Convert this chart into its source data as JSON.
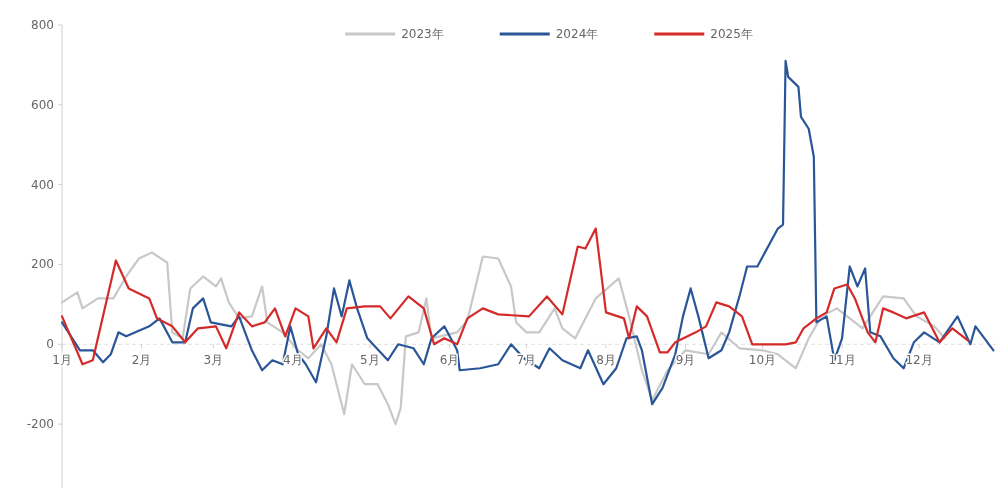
{
  "chart_data": {
    "type": "line",
    "xlim": [
      "--01-01",
      "--12-31"
    ],
    "ylim": [
      -360,
      800
    ],
    "yticks": [
      -200,
      0,
      200,
      400,
      600,
      800
    ],
    "xticks": [
      {
        "value": "--01-01",
        "label": "1月"
      },
      {
        "value": "--02-01",
        "label": "2月"
      },
      {
        "value": "--03-01",
        "label": "3月"
      },
      {
        "value": "--04-01",
        "label": "4月"
      },
      {
        "value": "--05-01",
        "label": "5月"
      },
      {
        "value": "--06-01",
        "label": "6月"
      },
      {
        "value": "--07-01",
        "label": "7月"
      },
      {
        "value": "--08-01",
        "label": "8月"
      },
      {
        "value": "--09-01",
        "label": "9月"
      },
      {
        "value": "--10-01",
        "label": "10月"
      },
      {
        "value": "--11-01",
        "label": "11月"
      },
      {
        "value": "--12-01",
        "label": "12月"
      }
    ],
    "legend": "top",
    "series": [
      {
        "name": "2023年",
        "color": "#c8c8c8",
        "x": [
          "--01-01",
          "--01-07",
          "--01-09",
          "--01-15",
          "--01-21",
          "--01-26",
          "--01-31",
          "--02-05",
          "--02-11",
          "--02-13",
          "--02-17",
          "--02-20",
          "--02-25",
          "--03-02",
          "--03-04",
          "--03-07",
          "--03-11",
          "--03-16",
          "--03-20",
          "--03-22",
          "--03-28",
          "--04-03",
          "--04-07",
          "--04-12",
          "--04-16",
          "--04-21",
          "--04-24",
          "--04-29",
          "--05-04",
          "--05-08",
          "--05-11",
          "--05-13",
          "--05-15",
          "--05-20",
          "--05-23",
          "--05-25",
          "--06-04",
          "--06-08",
          "--06-14",
          "--06-20",
          "--06-25",
          "--06-27",
          "--07-01",
          "--07-06",
          "--07-12",
          "--07-15",
          "--07-20",
          "--07-28",
          "--08-06",
          "--08-10",
          "--08-15",
          "--08-19",
          "--08-25",
          "--09-01",
          "--09-10",
          "--09-15",
          "--09-22",
          "--10-01",
          "--10-07",
          "--10-14",
          "--10-19",
          "--10-24",
          "--10-30",
          "--11-09",
          "--11-17",
          "--11-25",
          "--11-30",
          "--12-07",
          "--12-11"
        ],
        "values": [
          105,
          130,
          90,
          115,
          115,
          170,
          215,
          230,
          205,
          30,
          15,
          140,
          170,
          145,
          165,
          105,
          65,
          70,
          145,
          55,
          30,
          -15,
          -35,
          0,
          -50,
          -175,
          -50,
          -100,
          -100,
          -150,
          -200,
          -160,
          20,
          30,
          115,
          15,
          30,
          60,
          220,
          215,
          145,
          55,
          30,
          30,
          90,
          40,
          15,
          115,
          165,
          70,
          -65,
          -140,
          -65,
          -15,
          -25,
          30,
          -10,
          -15,
          -25,
          -60,
          15,
          70,
          90,
          40,
          120,
          115,
          70,
          45,
          15
        ]
      },
      {
        "name": "2024年",
        "color": "#2a5698",
        "x": [
          "--01-01",
          "--01-08",
          "--01-13",
          "--01-17",
          "--01-20",
          "--01-23",
          "--01-26",
          "--02-04",
          "--02-08",
          "--02-13",
          "--02-18",
          "--02-21",
          "--02-25",
          "--02-28",
          "--03-08",
          "--03-11",
          "--03-16",
          "--03-20",
          "--03-24",
          "--03-28",
          "--03-31",
          "--04-03",
          "--04-06",
          "--04-10",
          "--04-14",
          "--04-17",
          "--04-20",
          "--04-23",
          "--04-26",
          "--04-30",
          "--05-08",
          "--05-12",
          "--05-18",
          "--05-22",
          "--05-25",
          "--05-30",
          "--06-04",
          "--06-05",
          "--06-13",
          "--06-20",
          "--06-25",
          "--06-30",
          "--07-06",
          "--07-10",
          "--07-15",
          "--07-22",
          "--07-25",
          "--07-31",
          "--08-05",
          "--08-09",
          "--08-13",
          "--08-15",
          "--08-19",
          "--08-23",
          "--08-28",
          "--08-31",
          "--09-03",
          "--09-06",
          "--09-10",
          "--09-15",
          "--09-18",
          "--09-22",
          "--09-25",
          "--09-29",
          "--10-07",
          "--10-09",
          "--10-10",
          "--10-11",
          "--10-15",
          "--10-16",
          "--10-19",
          "--10-21",
          "--10-22",
          "--10-26",
          "--10-29",
          "--11-01",
          "--11-04",
          "--11-07",
          "--11-10",
          "--11-12",
          "--11-16",
          "--11-21",
          "--11-25",
          "--11-29",
          "--12-03",
          "--12-09",
          "--12-16",
          "--12-21",
          "--12-23",
          "--12-30"
        ],
        "values": [
          55,
          -15,
          -15,
          -45,
          -25,
          30,
          20,
          45,
          65,
          5,
          5,
          90,
          115,
          55,
          45,
          70,
          -15,
          -65,
          -40,
          -50,
          45,
          -25,
          -50,
          -95,
          20,
          140,
          70,
          160,
          90,
          15,
          -40,
          0,
          -10,
          -50,
          15,
          45,
          -15,
          -65,
          -60,
          -50,
          0,
          -35,
          -60,
          -10,
          -40,
          -60,
          -15,
          -100,
          -60,
          15,
          20,
          -15,
          -150,
          -110,
          -25,
          70,
          140,
          70,
          -35,
          -15,
          30,
          120,
          195,
          195,
          290,
          300,
          710,
          670,
          645,
          570,
          540,
          470,
          55,
          70,
          -40,
          15,
          195,
          145,
          190,
          30,
          20,
          -35,
          -60,
          5,
          30,
          5,
          70,
          0,
          45,
          -15
        ]
      },
      {
        "name": "2025年",
        "color": "#d42a2a",
        "x": [
          "--01-01",
          "--01-09",
          "--01-13",
          "--01-22",
          "--01-27",
          "--02-04",
          "--02-07",
          "--02-13",
          "--02-18",
          "--02-23",
          "--03-02",
          "--03-06",
          "--03-11",
          "--03-16",
          "--03-21",
          "--03-25",
          "--03-29",
          "--04-02",
          "--04-07",
          "--04-09",
          "--04-14",
          "--04-18",
          "--04-22",
          "--04-29",
          "--05-05",
          "--05-09",
          "--05-16",
          "--05-22",
          "--05-26",
          "--05-30",
          "--06-04",
          "--06-08",
          "--06-14",
          "--06-20",
          "--07-02",
          "--07-09",
          "--07-15",
          "--07-21",
          "--07-24",
          "--07-28",
          "--08-01",
          "--08-08",
          "--08-10",
          "--08-13",
          "--08-17",
          "--08-22",
          "--08-25",
          "--08-28",
          "--09-05",
          "--09-09",
          "--09-13",
          "--09-18",
          "--09-23",
          "--09-27",
          "--10-05",
          "--10-10",
          "--10-14",
          "--10-17",
          "--10-22",
          "--10-26",
          "--10-29",
          "--11-03",
          "--11-06",
          "--11-11",
          "--11-14",
          "--11-17",
          "--11-21",
          "--11-26",
          "--12-03",
          "--12-09",
          "--12-14",
          "--12-20"
        ],
        "values": [
          70,
          -50,
          -40,
          210,
          140,
          115,
          65,
          45,
          5,
          40,
          45,
          -10,
          80,
          45,
          55,
          90,
          20,
          90,
          70,
          -10,
          40,
          5,
          90,
          95,
          95,
          65,
          120,
          90,
          0,
          15,
          0,
          65,
          90,
          75,
          70,
          120,
          75,
          245,
          240,
          290,
          80,
          65,
          15,
          95,
          70,
          -20,
          -20,
          5,
          30,
          45,
          105,
          95,
          70,
          0,
          0,
          0,
          5,
          40,
          65,
          80,
          140,
          150,
          115,
          30,
          5,
          90,
          80,
          65,
          80,
          5,
          40,
          10
        ]
      }
    ]
  }
}
